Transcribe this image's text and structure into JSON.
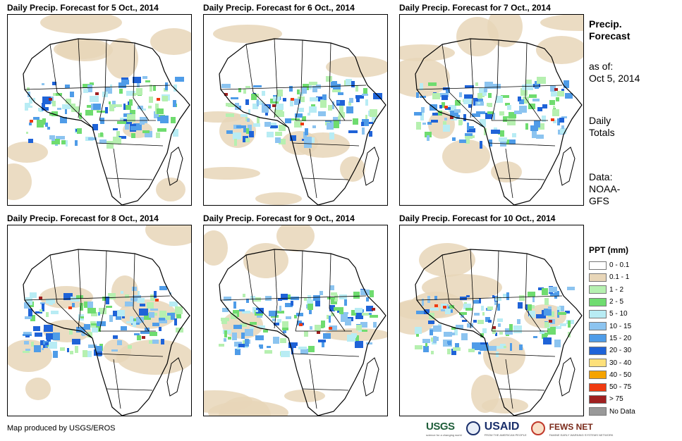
{
  "panels": [
    {
      "title": "Daily Precip. Forecast for 5 Oct., 2014"
    },
    {
      "title": "Daily Precip. Forecast for 6 Oct., 2014"
    },
    {
      "title": "Daily Precip. Forecast for 7 Oct., 2014"
    },
    {
      "title": "Daily Precip. Forecast for 8 Oct., 2014"
    },
    {
      "title": "Daily Precip. Forecast for 9 Oct., 2014"
    },
    {
      "title": "Daily Precip. Forecast for 10 Oct., 2014"
    }
  ],
  "side": {
    "title_line1": "Precip.",
    "title_line2": "Forecast",
    "asof_line1": "as of:",
    "asof_line2": "Oct 5, 2014",
    "daily_line1": "Daily",
    "daily_line2": "Totals",
    "data_line1": "Data:",
    "data_line2": "NOAA-",
    "data_line3": "GFS"
  },
  "legend": {
    "title": "PPT (mm)",
    "items": [
      {
        "label": "0 - 0.1",
        "color": "#ffffff"
      },
      {
        "label": "0.1 - 1",
        "color": "#e8d6b8"
      },
      {
        "label": "1 - 2",
        "color": "#b6f0b0"
      },
      {
        "label": "2 - 5",
        "color": "#6fdc6f"
      },
      {
        "label": "5 - 10",
        "color": "#b8ecf4"
      },
      {
        "label": "10 - 15",
        "color": "#8cc4f0"
      },
      {
        "label": "15 - 20",
        "color": "#4f9ce8"
      },
      {
        "label": "20 - 30",
        "color": "#1f63d8"
      },
      {
        "label": "30 - 40",
        "color": "#fde07a"
      },
      {
        "label": "40 - 50",
        "color": "#f5a300"
      },
      {
        "label": "50 - 75",
        "color": "#f03a10"
      },
      {
        "label": "> 75",
        "color": "#a02020"
      },
      {
        "label": "No Data",
        "color": "#999999"
      }
    ]
  },
  "credit": "Map produced by USGS/EROS",
  "logos": {
    "usgs": "USGS",
    "usgs_tagline": "science for a changing world",
    "usaid": "USAID",
    "usaid_tagline": "FROM THE AMERICAN PEOPLE",
    "fews": "FEWS NET",
    "fews_tagline": "FAMINE EARLY WARNING SYSTEMS NETWORK"
  }
}
